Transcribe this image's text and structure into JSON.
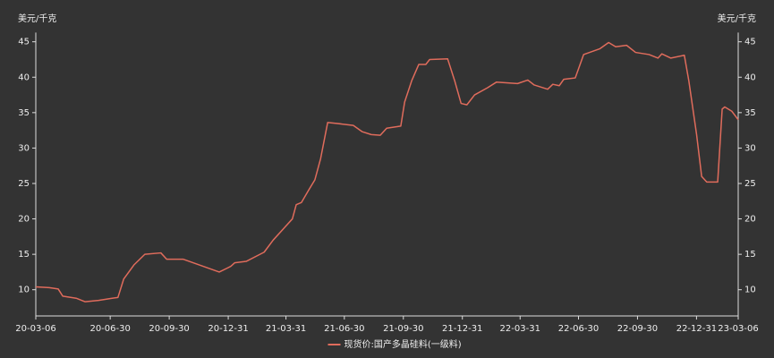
{
  "chart_data": {
    "type": "line",
    "y_label": "美元/千克",
    "y2_label": "美元/千克",
    "x": [
      "20-03-06",
      "20-03-27",
      "20-04-10",
      "20-04-17",
      "20-05-08",
      "20-05-22",
      "20-06-12",
      "20-07-03",
      "20-07-12",
      "20-07-21",
      "20-08-06",
      "20-08-23",
      "20-09-17",
      "20-09-26",
      "20-10-22",
      "20-11-19",
      "20-12-17",
      "21-01-04",
      "21-01-10",
      "21-01-28",
      "21-02-25",
      "21-03-11",
      "21-04-10",
      "21-04-16",
      "21-04-24",
      "21-05-05",
      "21-05-15",
      "21-05-24",
      "21-06-04",
      "21-06-16",
      "21-07-14",
      "21-07-28",
      "21-08-11",
      "21-08-25",
      "21-09-04",
      "21-09-26",
      "21-10-02",
      "21-10-13",
      "21-10-24",
      "21-11-04",
      "21-11-10",
      "21-12-08",
      "21-12-19",
      "21-12-29",
      "22-01-07",
      "22-01-19",
      "22-02-08",
      "22-02-22",
      "22-03-27",
      "22-04-12",
      "22-04-22",
      "22-05-13",
      "22-05-21",
      "22-05-31",
      "22-06-07",
      "22-06-25",
      "22-07-08",
      "22-08-02",
      "22-08-16",
      "22-08-27",
      "22-09-13",
      "22-09-27",
      "22-10-18",
      "22-11-01",
      "22-11-07",
      "22-11-21",
      "22-12-12",
      "22-12-19",
      "22-12-31",
      "23-01-08",
      "23-01-16",
      "23-02-02",
      "23-02-09",
      "23-02-13",
      "23-02-24",
      "23-03-06"
    ],
    "series": [
      {
        "name": "现货价:国产多晶硅料(一级料)",
        "color": "#e06c5c",
        "values": [
          10.4,
          10.3,
          10.1,
          9.1,
          8.8,
          8.3,
          8.5,
          8.8,
          8.9,
          11.5,
          13.5,
          15.0,
          15.2,
          14.3,
          14.3,
          13.4,
          12.5,
          13.3,
          13.8,
          14.0,
          15.3,
          17.0,
          20.0,
          22.0,
          22.3,
          24.0,
          25.5,
          28.5,
          33.6,
          33.5,
          33.2,
          32.3,
          31.9,
          31.8,
          32.8,
          33.1,
          36.5,
          39.5,
          41.8,
          41.8,
          42.5,
          42.6,
          39.5,
          36.3,
          36.1,
          37.5,
          38.5,
          39.3,
          39.1,
          39.6,
          38.9,
          38.3,
          39.0,
          38.8,
          39.7,
          39.9,
          43.2,
          44.0,
          44.9,
          44.3,
          44.5,
          43.5,
          43.2,
          42.7,
          43.3,
          42.7,
          43.1,
          39.5,
          32.0,
          26.0,
          25.2,
          25.2,
          35.5,
          35.8,
          35.2,
          34.0
        ]
      }
    ],
    "xlim": [
      "20-03-06",
      "23-03-06"
    ],
    "xticks": [
      "20-03-06",
      "20-06-30",
      "20-09-30",
      "20-12-31",
      "21-03-31",
      "21-06-30",
      "21-09-30",
      "21-12-31",
      "22-03-31",
      "22-06-30",
      "22-09-30",
      "22-12-31",
      "23-03-06"
    ],
    "ylim": [
      6.3,
      46.3
    ],
    "yticks": [
      10,
      15,
      20,
      25,
      30,
      35,
      40,
      45
    ],
    "y2lim": [
      6.3,
      46.3
    ],
    "y2ticks": [
      10,
      15,
      20,
      25,
      30,
      35,
      40,
      45
    ],
    "legend": "bottom"
  }
}
